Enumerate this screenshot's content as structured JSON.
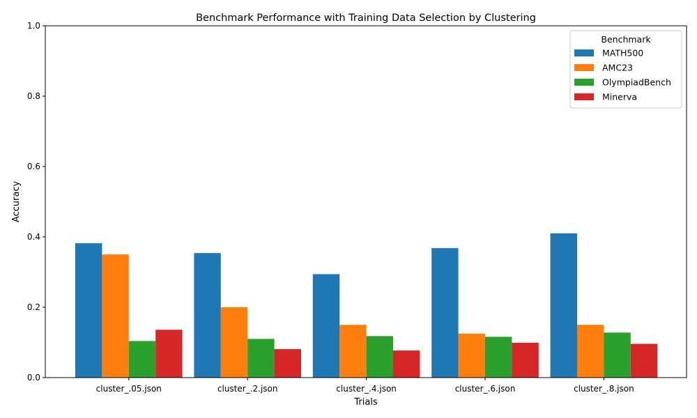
{
  "chart_data": {
    "type": "bar",
    "title": "Benchmark Performance with Training Data Selection by Clustering",
    "xlabel": "Trials",
    "ylabel": "Accuracy",
    "ylim": [
      0,
      1.0
    ],
    "yticks": [
      "0.0",
      "0.2",
      "0.4",
      "0.6",
      "0.8",
      "1.0"
    ],
    "categories": [
      "cluster_.05.json",
      "cluster_.2.json",
      "cluster_.4.json",
      "cluster_.6.json",
      "cluster_.8.json"
    ],
    "legend": {
      "title": "Benchmark",
      "placement": "top-right"
    },
    "grid": false,
    "series": [
      {
        "name": "MATH500",
        "color": "#1f77b4",
        "values": [
          0.382,
          0.354,
          0.294,
          0.368,
          0.41
        ]
      },
      {
        "name": "AMC23",
        "color": "#ff7f0e",
        "values": [
          0.35,
          0.2,
          0.15,
          0.125,
          0.15
        ]
      },
      {
        "name": "OlympiadBench",
        "color": "#2ca02c",
        "values": [
          0.104,
          0.11,
          0.118,
          0.116,
          0.128
        ]
      },
      {
        "name": "Minerva",
        "color": "#d62728",
        "values": [
          0.136,
          0.081,
          0.077,
          0.099,
          0.096
        ]
      }
    ]
  }
}
